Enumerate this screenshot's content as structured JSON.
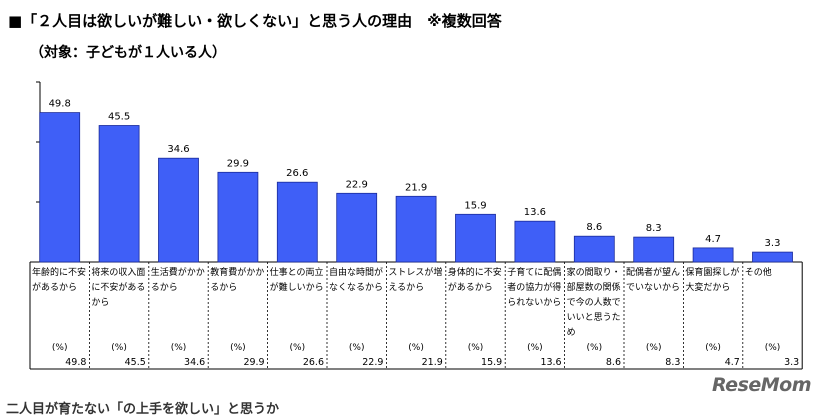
{
  "header": {
    "title": "■「２人目は欲しいが難しい・欲しくない」と思う人の理由　※複数回答",
    "subtitle": "（対象：子どもが１人いる人）"
  },
  "footer": {
    "cut_text": "二人目が育たない「の上手を欲しい」と思うか",
    "watermark": "ReseMom"
  },
  "chart_data": {
    "type": "bar",
    "categories": [
      "年齢的に不安があるから",
      "将来の収入面に不安があるから",
      "生活費がかかるから",
      "教育費がかかるから",
      "仕事との両立が難しいから",
      "自由な時間がなくなるから",
      "ストレスが増えるから",
      "身体的に不安があるから",
      "子育てに配偶者の協力が得られないから",
      "家の間取り・部屋数の関係で今の人数でいいと思うため",
      "配偶者が望んでいないから",
      "保育園探しが大変だから",
      "その他"
    ],
    "values": [
      49.8,
      45.5,
      34.6,
      29.9,
      26.6,
      22.9,
      21.9,
      15.9,
      13.6,
      8.6,
      8.3,
      4.7,
      3.3
    ],
    "unit_label": "(%)",
    "ylim": [
      0,
      60
    ],
    "grid": false,
    "bar_color": "#3f5ff7",
    "bar_edge": "#1a2a9a"
  }
}
